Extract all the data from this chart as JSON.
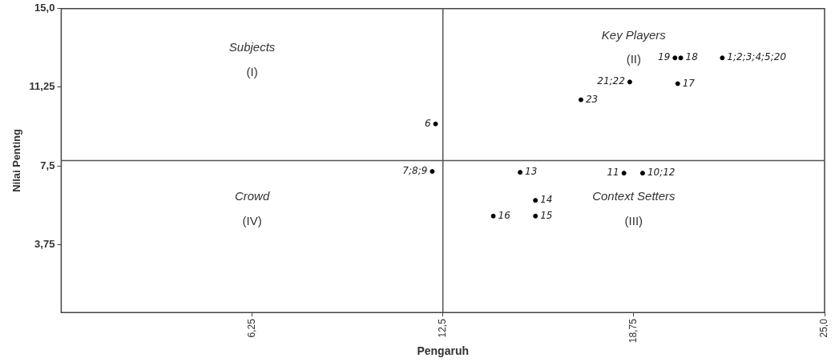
{
  "chart_data": {
    "type": "scatter",
    "xlabel": "Pengaruh",
    "ylabel": "Nilai Penting",
    "x": [
      12.26,
      12.15,
      15.03,
      15.53,
      15.53,
      14.15,
      18.43,
      19.04,
      17.02,
      18.62,
      20.19,
      20.1,
      20.29,
      21.65
    ],
    "values": [
      9.5,
      7.23,
      7.19,
      5.85,
      5.1,
      5.1,
      7.15,
      7.15,
      10.65,
      11.5,
      11.42,
      12.65,
      12.65,
      12.65
    ],
    "color": "#000000",
    "marker": "circle",
    "grid": false,
    "legend": false,
    "xlim": [
      0,
      25
    ],
    "xticks": [
      {
        "value": 6.25,
        "label": "6,25"
      },
      {
        "value": 12.5,
        "label": "12,5"
      },
      {
        "value": 18.75,
        "label": "18,75"
      },
      {
        "value": 25,
        "label": "25,0"
      }
    ],
    "ylim": [
      0.5,
      15
    ],
    "yticks": [
      {
        "value": 3.75,
        "label": "3,75"
      },
      {
        "value": 7.5,
        "label": "7,5"
      },
      {
        "value": 11.25,
        "label": "11,25"
      },
      {
        "value": 15,
        "label": "15,0"
      }
    ],
    "ref_lines": [
      {
        "axis": "x",
        "value": 12.5,
        "color": "#555555"
      },
      {
        "axis": "y",
        "value": 7.75,
        "color": "#555555"
      }
    ],
    "annotations": [
      "Subjects",
      "(I)",
      "Key Players",
      "(II)",
      "Context Setters",
      "(III)",
      "Crowd",
      "(IV)",
      {
        "text": "6",
        "x": 12.26,
        "y": 9.5
      },
      {
        "text": "7;8;9",
        "x": 12.15,
        "y": 7.23
      },
      {
        "text": "13",
        "x": 15.03,
        "y": 7.19
      },
      {
        "text": "14",
        "x": 15.53,
        "y": 5.85
      },
      {
        "text": "15",
        "x": 15.53,
        "y": 5.1
      },
      {
        "text": "16",
        "x": 14.15,
        "y": 5.1
      },
      {
        "text": "11",
        "x": 18.43,
        "y": 7.15
      },
      {
        "text": "10;12",
        "x": 19.04,
        "y": 7.15
      },
      {
        "text": "23",
        "x": 17.02,
        "y": 10.65
      },
      {
        "text": "21;22",
        "x": 18.62,
        "y": 11.5
      },
      {
        "text": "17",
        "x": 20.19,
        "y": 11.42
      },
      {
        "text": "19",
        "x": 20.1,
        "y": 12.65
      },
      {
        "text": "18",
        "x": 20.29,
        "y": 12.65
      },
      {
        "text": "1;2;3;4;5;20",
        "x": 21.65,
        "y": 12.65
      }
    ]
  }
}
